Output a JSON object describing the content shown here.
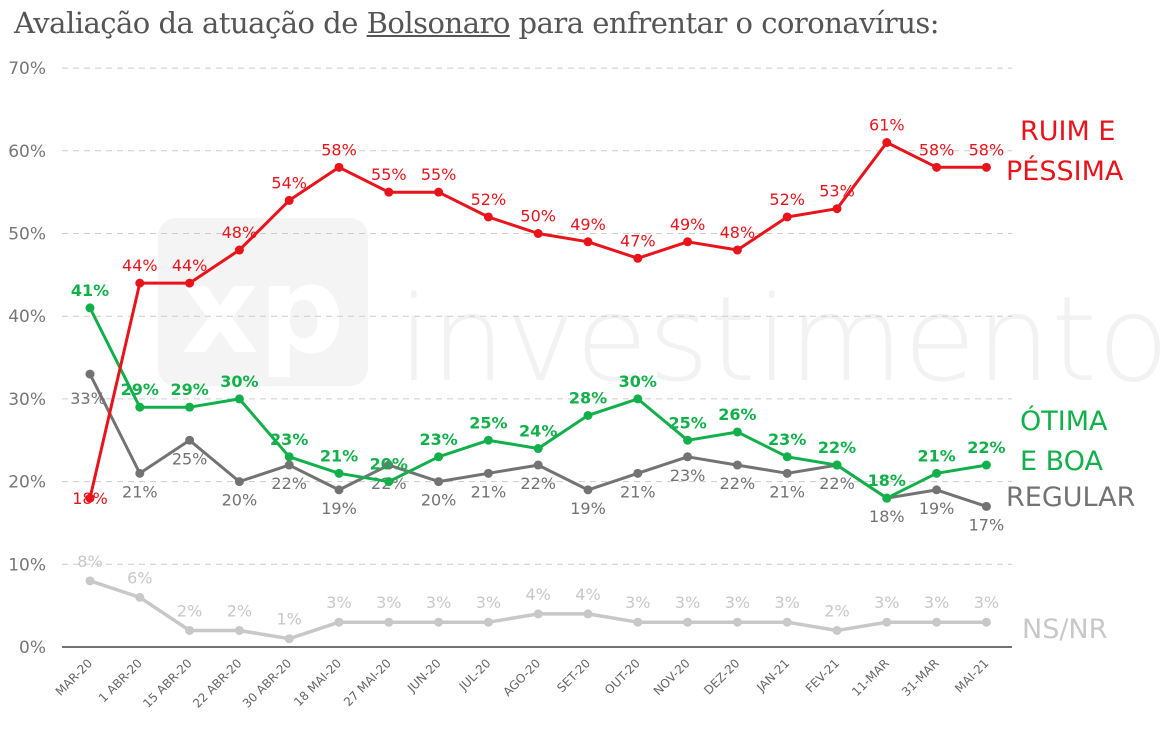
{
  "title": {
    "prefix": "Avaliação da atuação de ",
    "underlined": "Bolsonaro",
    "suffix": " para enfrentar o coronavírus:"
  },
  "watermark": {
    "logo_text": "xp",
    "text": "investimentos"
  },
  "colors": {
    "ruim": "#e8141c",
    "otima": "#12b04a",
    "regular": "#737373",
    "nsnr": "#c8c8c8",
    "grid": "#cccccc"
  },
  "chart_data": {
    "type": "line",
    "categories": [
      "MAR-20",
      "1 ABR-20",
      "15 ABR-20",
      "22 ABR-20",
      "30 ABR-20",
      "18 MAI-20",
      "27 MAI-20",
      "JUN-20",
      "JUL-20",
      "AGO-20",
      "SET-20",
      "OUT-20",
      "NOV-20",
      "DEZ-20",
      "JAN-21",
      "FEV-21",
      "11-MAR",
      "31-MAR",
      "MAI-21"
    ],
    "ylim": [
      0,
      70
    ],
    "yticks": [
      "0%",
      "10%",
      "20%",
      "30%",
      "40%",
      "50%",
      "60%",
      "70%"
    ],
    "grid": true,
    "series": [
      {
        "key": "ruim",
        "name_lines": [
          "RUIM E",
          "PÉSSIMA"
        ],
        "values": [
          18,
          44,
          44,
          48,
          54,
          58,
          55,
          55,
          52,
          50,
          49,
          47,
          49,
          48,
          52,
          53,
          61,
          58,
          58
        ],
        "labels": [
          "18%",
          "44%",
          "44%",
          "48%",
          "54%",
          "58%",
          "55%",
          "55%",
          "52%",
          "50%",
          "49%",
          "47%",
          "49%",
          "48%",
          "52%",
          "53%",
          "61%",
          "58%",
          "58%"
        ]
      },
      {
        "key": "otima",
        "name_lines": [
          "ÓTIMA",
          "E BOA"
        ],
        "values": [
          41,
          29,
          29,
          30,
          23,
          21,
          20,
          23,
          25,
          24,
          28,
          30,
          25,
          26,
          23,
          22,
          18,
          21,
          22
        ],
        "labels": [
          "41%",
          "29%",
          "29%",
          "30%",
          "23%",
          "21%",
          "20%",
          "23%",
          "25%",
          "24%",
          "28%",
          "30%",
          "25%",
          "26%",
          "23%",
          "22%",
          "18%",
          "21%",
          "22%"
        ]
      },
      {
        "key": "regular",
        "name_lines": [
          "REGULAR"
        ],
        "values": [
          33,
          21,
          25,
          20,
          22,
          19,
          22,
          20,
          21,
          22,
          19,
          21,
          23,
          22,
          21,
          22,
          18,
          19,
          17
        ],
        "labels": [
          "33%",
          "21%",
          "25%",
          "20%",
          "22%",
          "19%",
          "22%",
          "20%",
          "21%",
          "22%",
          "19%",
          "21%",
          "23%",
          "22%",
          "21%",
          "22%",
          "18%",
          "19%",
          "17%"
        ]
      },
      {
        "key": "nsnr",
        "name_lines": [
          "NS/NR"
        ],
        "values": [
          8,
          6,
          2,
          2,
          1,
          3,
          3,
          3,
          3,
          4,
          4,
          3,
          3,
          3,
          3,
          2,
          3,
          3,
          3
        ],
        "labels": [
          "8%",
          "6%",
          "2%",
          "2%",
          "1%",
          "3%",
          "3%",
          "3%",
          "3%",
          "4%",
          "4%",
          "3%",
          "3%",
          "3%",
          "3%",
          "2%",
          "3%",
          "3%",
          "3%"
        ]
      }
    ]
  }
}
